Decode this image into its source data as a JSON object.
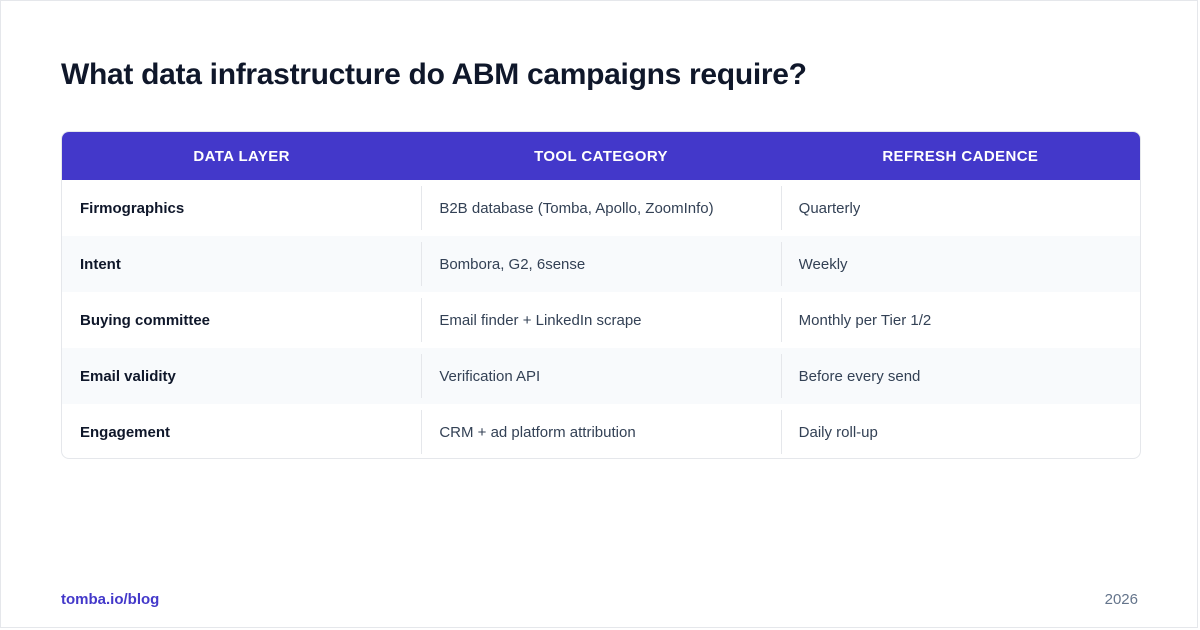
{
  "page": {
    "title": "What data infrastructure do ABM campaigns require?"
  },
  "table": {
    "headers": [
      "DATA LAYER",
      "TOOL CATEGORY",
      "REFRESH CADENCE"
    ],
    "rows": [
      [
        "Firmographics",
        "B2B database (Tomba, Apollo, ZoomInfo)",
        "Quarterly"
      ],
      [
        "Intent",
        "Bombora, G2, 6sense",
        "Weekly"
      ],
      [
        "Buying committee",
        "Email finder + LinkedIn scrape",
        "Monthly per Tier 1/2"
      ],
      [
        "Email validity",
        "Verification API",
        "Before every send"
      ],
      [
        "Engagement",
        "CRM + ad platform attribution",
        "Daily roll-up"
      ]
    ]
  },
  "footer": {
    "link": "tomba.io/blog",
    "year": "2026"
  },
  "colors": {
    "accent": "#4338ca",
    "title": "#0f172a",
    "body_text": "#334155",
    "row_alt": "#f8fafc",
    "border": "#e5e7eb"
  }
}
